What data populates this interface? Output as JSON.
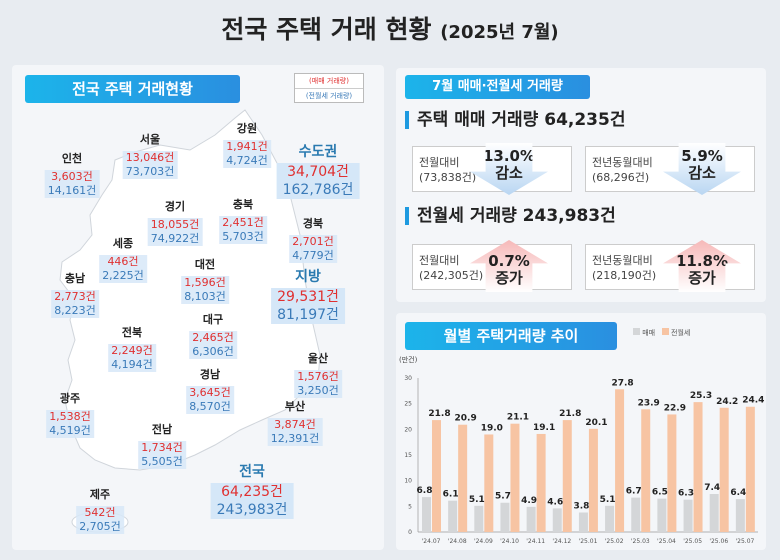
{
  "title": {
    "main": "전국 주택 거래 현황",
    "sub": "(2025년 7월)"
  },
  "map_panel": {
    "header": "전국 주택 거래현황",
    "legend_sale": "(매매 거래량)",
    "legend_rent": "(전월세 거래량)",
    "regions": [
      {
        "name": "서울",
        "sale": "13,046건",
        "rent": "73,703건"
      },
      {
        "name": "강원",
        "sale": "1,941건",
        "rent": "4,724건"
      },
      {
        "name": "인천",
        "sale": "3,603건",
        "rent": "14,161건"
      },
      {
        "name": "경기",
        "sale": "18,055건",
        "rent": "74,922건"
      },
      {
        "name": "충북",
        "sale": "2,451건",
        "rent": "5,703건"
      },
      {
        "name": "경북",
        "sale": "2,701건",
        "rent": "4,779건"
      },
      {
        "name": "세종",
        "sale": "446건",
        "rent": "2,225건"
      },
      {
        "name": "대전",
        "sale": "1,596건",
        "rent": "8,103건"
      },
      {
        "name": "충남",
        "sale": "2,773건",
        "rent": "8,223건"
      },
      {
        "name": "전북",
        "sale": "2,249건",
        "rent": "4,194건"
      },
      {
        "name": "대구",
        "sale": "2,465건",
        "rent": "6,306건"
      },
      {
        "name": "울산",
        "sale": "1,576건",
        "rent": "3,250건"
      },
      {
        "name": "경남",
        "sale": "3,645건",
        "rent": "8,570건"
      },
      {
        "name": "광주",
        "sale": "1,538건",
        "rent": "4,519건"
      },
      {
        "name": "부산",
        "sale": "3,874건",
        "rent": "12,391건"
      },
      {
        "name": "전남",
        "sale": "1,734건",
        "rent": "5,505건"
      },
      {
        "name": "제주",
        "sale": "542건",
        "rent": "2,705건"
      }
    ],
    "totals": [
      {
        "name": "수도권",
        "sale": "34,704건",
        "rent": "162,786건"
      },
      {
        "name": "지방",
        "sale": "29,531건",
        "rent": "81,197건"
      },
      {
        "name": "전국",
        "sale": "64,235건",
        "rent": "243,983건"
      }
    ]
  },
  "stats": {
    "header": "7월 매매·전월세 거래량",
    "sale_title": "주택 매매 거래량 64,235건",
    "sale_mom_label": "전월대비",
    "sale_mom_base": "(73,838건)",
    "sale_mom_pct": "13.0%",
    "sale_mom_dir": "감소",
    "sale_yoy_label": "전년동월대비",
    "sale_yoy_base": "(68,296건)",
    "sale_yoy_pct": "5.9%",
    "sale_yoy_dir": "감소",
    "rent_title": "전월세 거래량 243,983건",
    "rent_mom_label": "전월대비",
    "rent_mom_base": "(242,305건)",
    "rent_mom_pct": "0.7%",
    "rent_mom_dir": "증가",
    "rent_yoy_label": "전년동월대비",
    "rent_yoy_base": "(218,190건)",
    "rent_yoy_pct": "11.8%",
    "rent_yoy_dir": "증가"
  },
  "chart_data": {
    "type": "bar",
    "title": "월별 주택거래량 추이",
    "ylabel": "(만건)",
    "ylim": [
      0,
      30
    ],
    "yticks": [
      0,
      5,
      10,
      15,
      20,
      25,
      30
    ],
    "categories": [
      "'24.07",
      "'24.08",
      "'24.09",
      "'24.10",
      "'24.11",
      "'24.12",
      "'25.01",
      "'25.02",
      "'25.03",
      "'25.04",
      "'25.05",
      "'25.06",
      "'25.07"
    ],
    "series": [
      {
        "name": "매매",
        "color": "#d4d6d8",
        "values": [
          6.8,
          6.1,
          5.1,
          5.7,
          4.9,
          4.6,
          3.8,
          5.1,
          6.7,
          6.5,
          6.3,
          7.4,
          6.4
        ]
      },
      {
        "name": "전월세",
        "color": "#f7c4a3",
        "values": [
          21.8,
          20.9,
          19.0,
          21.1,
          19.1,
          21.8,
          20.1,
          27.8,
          23.9,
          22.9,
          25.3,
          24.2,
          24.4
        ]
      }
    ],
    "legend": "top-right"
  }
}
